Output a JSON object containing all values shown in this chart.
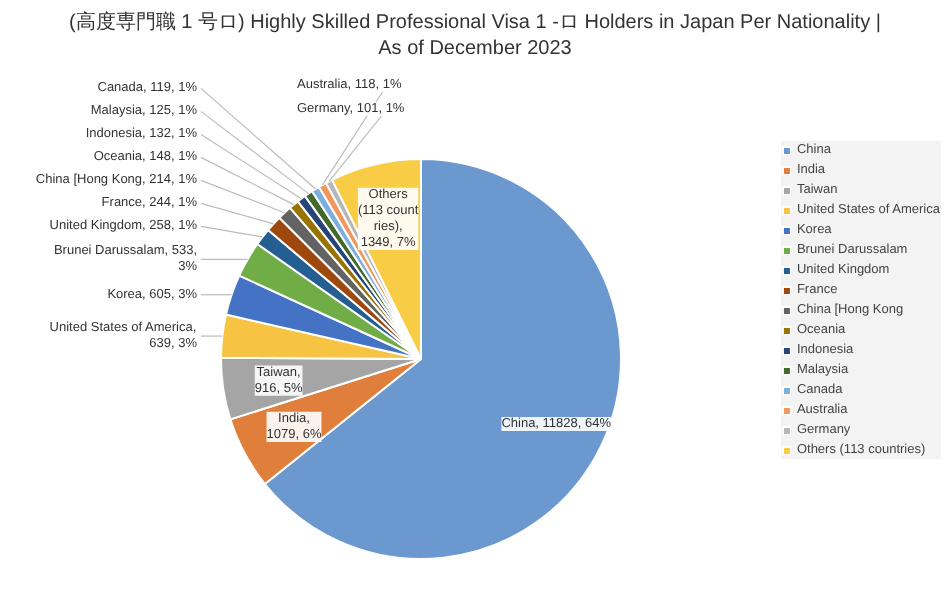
{
  "chart_data": {
    "type": "pie",
    "title": "(高度専門職 1 号ロ) Highly Skilled Professional Visa 1 -ロ Holders in Japan Per Nationality | As of December 2023",
    "categories": [
      "China",
      "India",
      "Taiwan",
      "United States of America",
      "Korea",
      "Brunei Darussalam",
      "United Kingdom",
      "France",
      "China [Hong Kong",
      "Oceania",
      "Indonesia",
      "Malaysia",
      "Canada",
      "Australia",
      "Germany",
      "Others (113 countries)"
    ],
    "values": [
      11828,
      1079,
      916,
      639,
      605,
      533,
      258,
      244,
      214,
      148,
      132,
      125,
      119,
      118,
      101,
      1349
    ],
    "colors": [
      "#6a98cf",
      "#e07f3c",
      "#a5a5a5",
      "#f6c342",
      "#4472c4",
      "#70ad47",
      "#255e91",
      "#9e480e",
      "#636363",
      "#997300",
      "#264478",
      "#43682b",
      "#7cafdd",
      "#f1975a",
      "#b7b7b7",
      "#f8cd45"
    ],
    "value_labels": [
      "China, 11828, 64%",
      "India, 1079, 6%",
      "Taiwan, 916, 5%",
      "United States of America, 639, 3%",
      "Korea, 605, 3%",
      "Brunei Darussalam, 533, 3%",
      "United Kingdom, 258, 1%",
      "France, 244, 1%",
      "China [Hong Kong, 214, 1%",
      "Oceania, 148, 1%",
      "Indonesia, 132, 1%",
      "Malaysia, 125, 1%",
      "Canada, 119, 1%",
      "Australia, 118, 1%",
      "Germany, 101, 1%",
      "Others (113 countries), 1349, 7%"
    ],
    "legend": "right"
  }
}
